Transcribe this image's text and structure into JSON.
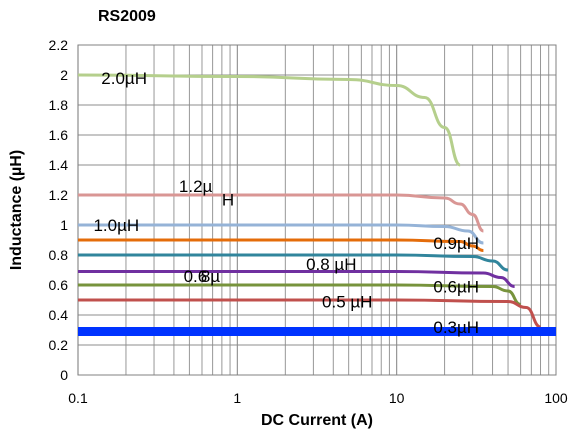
{
  "chart_data": {
    "type": "line",
    "title": "RS2009",
    "xlabel": "DC Current (A)",
    "ylabel": "Inductance (µH)",
    "x_scale": "log",
    "xlim": [
      0.1,
      100
    ],
    "ylim": [
      0,
      2.2
    ],
    "x_ticks": [
      "0.1",
      "1",
      "10",
      "100"
    ],
    "y_ticks": [
      "0",
      "0.2",
      "0.4",
      "0.6",
      "0.8",
      "1",
      "1.2",
      "1.4",
      "1.6",
      "1.8",
      "2",
      "2.2"
    ],
    "grid": true,
    "series": [
      {
        "color": "#b5cf8c",
        "x": [
          0.1,
          1,
          5,
          10,
          15,
          20,
          25
        ],
        "y": [
          2.0,
          1.99,
          1.97,
          1.93,
          1.85,
          1.65,
          1.4
        ]
      },
      {
        "color": "#d99694",
        "x": [
          0.1,
          10,
          20,
          25,
          30,
          35
        ],
        "y": [
          1.2,
          1.2,
          1.18,
          1.14,
          1.07,
          0.96
        ]
      },
      {
        "color": "#95b3d7",
        "x": [
          0.1,
          10,
          20,
          28,
          35
        ],
        "y": [
          1.0,
          1.0,
          0.99,
          0.96,
          0.88
        ]
      },
      {
        "color": "#e46c0a",
        "x": [
          0.1,
          10,
          25,
          30,
          35
        ],
        "y": [
          0.9,
          0.9,
          0.89,
          0.86,
          0.83
        ]
      },
      {
        "color": "#31859c",
        "x": [
          0.1,
          10,
          30,
          40,
          50
        ],
        "y": [
          0.8,
          0.8,
          0.79,
          0.76,
          0.7
        ]
      },
      {
        "color": "#7030a0",
        "x": [
          0.1,
          10,
          35,
          45,
          55
        ],
        "y": [
          0.69,
          0.69,
          0.68,
          0.65,
          0.59
        ]
      },
      {
        "color": "#77933c",
        "x": [
          0.1,
          10,
          40,
          50,
          60
        ],
        "y": [
          0.6,
          0.6,
          0.59,
          0.56,
          0.47
        ]
      },
      {
        "color": "#c0504d",
        "x": [
          0.1,
          10,
          50,
          65,
          80
        ],
        "y": [
          0.5,
          0.5,
          0.49,
          0.45,
          0.32
        ]
      },
      {
        "color": "#0033ff",
        "x": [
          0.1,
          100
        ],
        "y": [
          0.29,
          0.29
        ]
      }
    ],
    "annotations": [
      {
        "text": "2.0µH",
        "x": 0.14,
        "y": 1.98
      },
      {
        "text": "1.2µ",
        "x": 0.43,
        "y": 1.26
      },
      {
        "text": "H",
        "x": 0.8,
        "y": 1.17
      },
      {
        "text": "1.0µH",
        "x": 0.125,
        "y": 1.0
      },
      {
        "text": "0.9µH",
        "x": 17,
        "y": 0.88
      },
      {
        "text": "0.8 µH",
        "x": 2.7,
        "y": 0.74
      },
      {
        "text": "0.6",
        "x": 0.46,
        "y": 0.66
      },
      {
        "text": "8µ",
        "x": 0.59,
        "y": 0.66
      },
      {
        "text": "0.6µH",
        "x": 17,
        "y": 0.59
      },
      {
        "text": "0.5 µH",
        "x": 3.4,
        "y": 0.49
      },
      {
        "text": "0.3µH",
        "x": 17,
        "y": 0.32
      }
    ]
  }
}
